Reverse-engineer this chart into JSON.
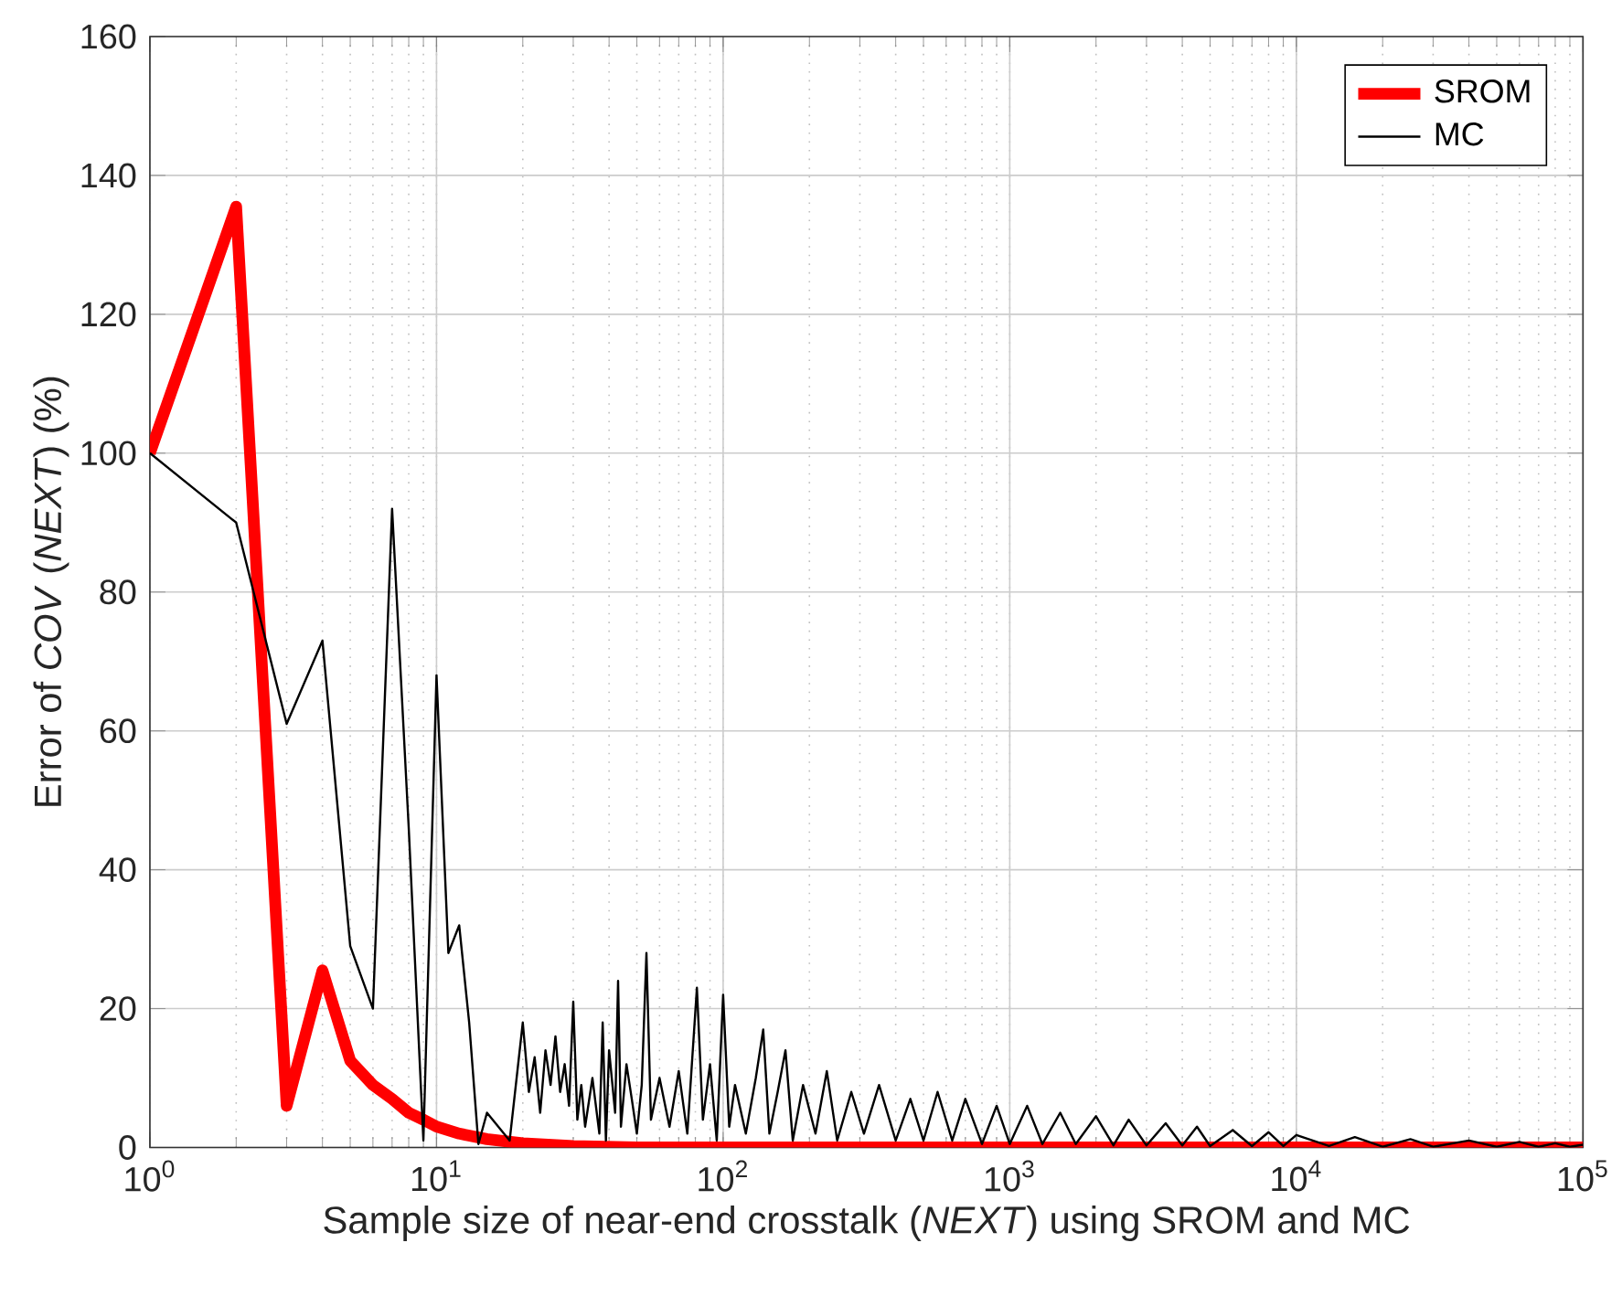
{
  "chart_data": {
    "type": "line",
    "xlabel": "Sample size of near-end crosstalk (*NEXT*) using SROM and MC",
    "ylabel": "Error of *COV* (*NEXT*) (%)",
    "log": "x",
    "xlim": [
      1,
      100000
    ],
    "xticks": [
      {
        "value": 1,
        "label": "10$^{0}$"
      },
      {
        "value": 10,
        "label": "10$^{1}$"
      },
      {
        "value": 100,
        "label": "10$^{2}$"
      },
      {
        "value": 1000,
        "label": "10$^{3}$"
      },
      {
        "value": 10000,
        "label": "10$^{4}$"
      },
      {
        "value": 100000,
        "label": "10$^{5}$"
      }
    ],
    "ylim": [
      0,
      160
    ],
    "yticks": [
      0,
      20,
      40,
      60,
      80,
      100,
      120,
      140,
      160
    ],
    "grid": true,
    "legend": "top right",
    "line_style": "solid",
    "series": [
      {
        "name": "SROM",
        "color": "#ff0000",
        "x": [
          1,
          2,
          3,
          4,
          5,
          6,
          7,
          8,
          9,
          10,
          12,
          15,
          20,
          30,
          50,
          100,
          1000,
          10000,
          100000
        ],
        "values": [
          100,
          135.5,
          6,
          25.5,
          12.5,
          9,
          7,
          5,
          4,
          3,
          2,
          1.2,
          0.6,
          0.2,
          0,
          0,
          0,
          0,
          0
        ]
      },
      {
        "name": "MC",
        "color": "#000000",
        "x": [
          1,
          2,
          3,
          4,
          5,
          6,
          7,
          8,
          9,
          10,
          11,
          12,
          13,
          14,
          15,
          18,
          20,
          21,
          22,
          23,
          24,
          25,
          26,
          27,
          28,
          29,
          30,
          31,
          32,
          33,
          35,
          37,
          38,
          39,
          40,
          42,
          43,
          44,
          46,
          48,
          50,
          52,
          54,
          56,
          60,
          65,
          70,
          75,
          81,
          85,
          90,
          95,
          100,
          105,
          110,
          120,
          130,
          138,
          145,
          155,
          165,
          175,
          190,
          210,
          230,
          250,
          280,
          310,
          350,
          400,
          450,
          500,
          560,
          630,
          700,
          800,
          900,
          1000,
          1150,
          1300,
          1500,
          1700,
          2000,
          2300,
          2600,
          3000,
          3500,
          4000,
          4500,
          5000,
          6000,
          7000,
          8000,
          9000,
          10000,
          13000,
          16000,
          20000,
          25000,
          30000,
          40000,
          50000,
          60000,
          70000,
          80000,
          90000,
          100000
        ],
        "values": [
          100,
          90,
          61,
          73,
          29,
          20,
          92,
          46,
          1,
          68,
          28,
          32,
          18,
          0.5,
          5,
          1,
          18,
          8,
          13,
          5,
          14,
          9,
          16,
          8,
          12,
          6,
          21,
          4,
          9,
          3,
          10,
          2,
          18,
          1,
          14,
          5,
          24,
          3,
          12,
          7,
          2,
          9,
          28,
          4,
          10,
          3,
          11,
          2,
          23,
          4,
          12,
          1,
          22,
          3,
          9,
          2,
          10,
          17,
          2,
          8,
          14,
          1,
          9,
          2,
          11,
          1,
          8,
          2,
          9,
          1,
          7,
          1,
          8,
          1,
          7,
          0.5,
          6,
          0.5,
          6,
          0.5,
          5,
          0.5,
          4.5,
          0.3,
          4,
          0.3,
          3.5,
          0.3,
          3,
          0.2,
          2.5,
          0.2,
          2.2,
          0.2,
          1.8,
          0.2,
          1.5,
          0.1,
          1.2,
          0.1,
          1,
          0.1,
          0.8,
          0.1,
          0.6,
          0.1,
          0.4
        ]
      }
    ]
  }
}
